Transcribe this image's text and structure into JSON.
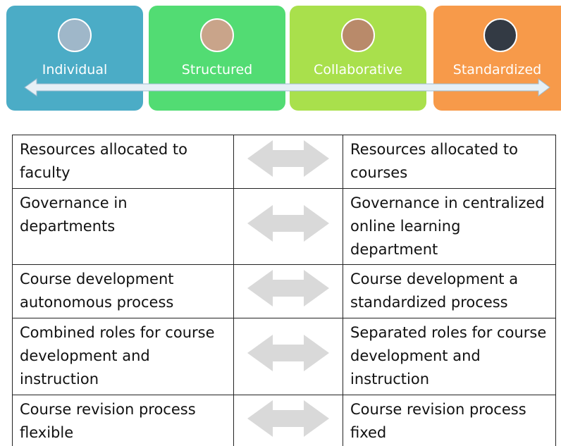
{
  "header": {
    "stages": [
      "Individual",
      "Structured",
      "Collaborative",
      "Standardized"
    ]
  },
  "table": {
    "rows": [
      [
        "Resources allocated to faculty",
        "Resources allocated to courses"
      ],
      [
        "Governance in departments",
        "Governance in centralized online learning department"
      ],
      [
        "Course development autonomous process",
        "Course development a standardized process"
      ],
      [
        "Combined roles for course development and instruction",
        "Separated roles for course development and instruction"
      ],
      [
        "Course revision process flexible",
        "Course revision process fixed"
      ]
    ]
  }
}
